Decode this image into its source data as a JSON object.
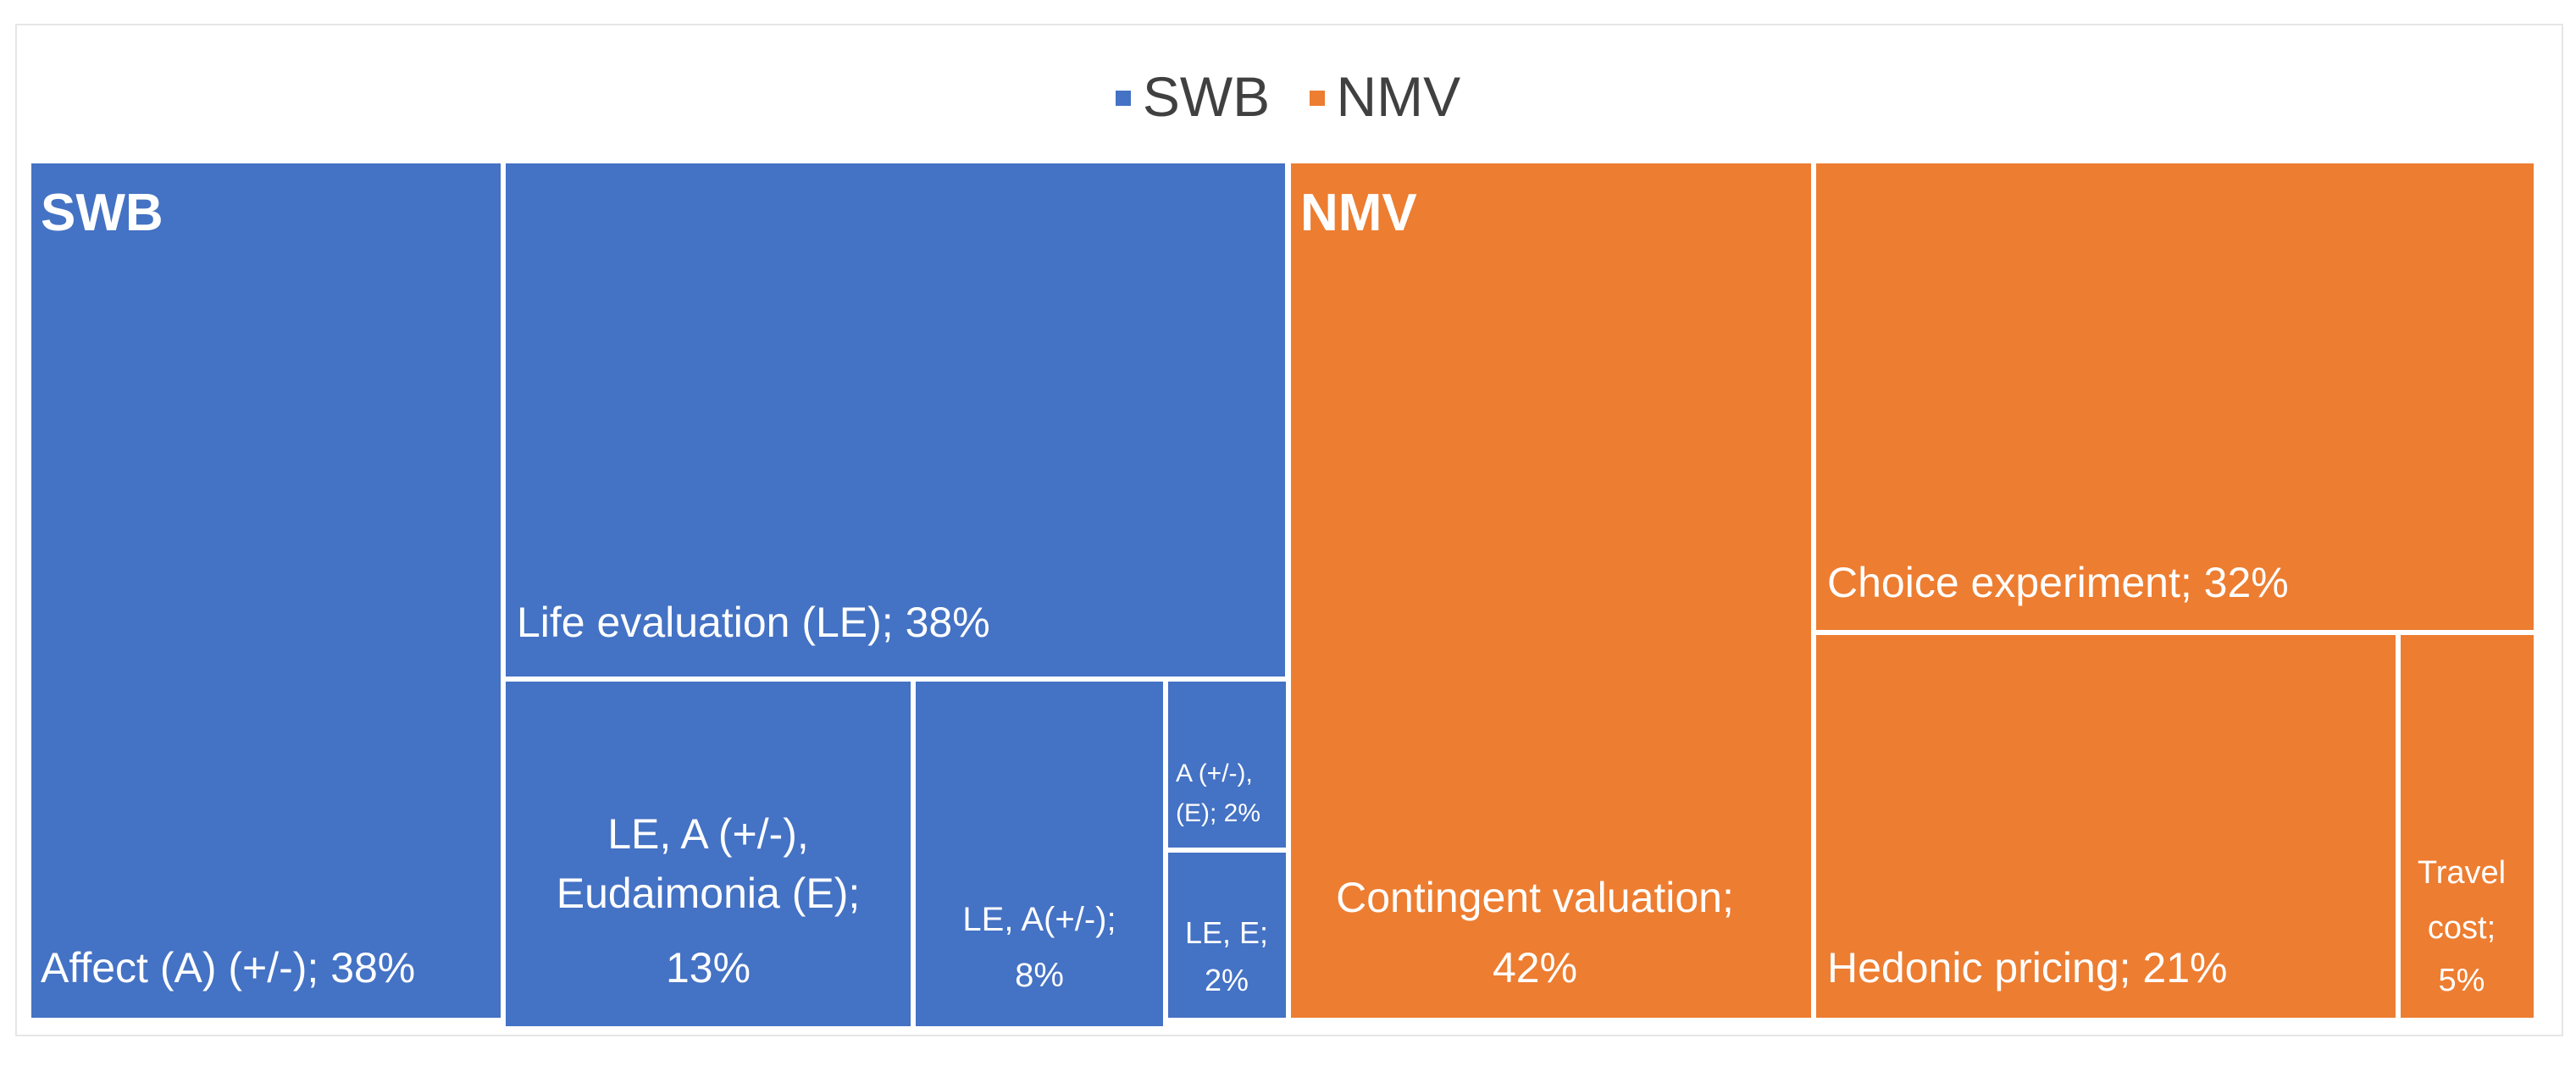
{
  "chart_data": {
    "type": "treemap",
    "legend": [
      {
        "name": "SWB",
        "color": "#4472c4"
      },
      {
        "name": "NMV",
        "color": "#ed7d31"
      }
    ],
    "groups": [
      {
        "name": "SWB",
        "color": "#4472c4",
        "items": [
          {
            "label": "Affect (A) (+/-); 38%",
            "value": 38
          },
          {
            "label": "Life evaluation (LE); 38%",
            "value": 38
          },
          {
            "label": "LE, A (+/-), Eudaimonia (E); 13%",
            "value": 13
          },
          {
            "label": "LE, A(+/-); 8%",
            "value": 8
          },
          {
            "label": "A (+/-), (E); 2%",
            "value": 2
          },
          {
            "label": "LE, E; 2%",
            "value": 2
          }
        ]
      },
      {
        "name": "NMV",
        "color": "#ed7d31",
        "items": [
          {
            "label": "Contingent valuation; 42%",
            "value": 42
          },
          {
            "label": "Choice experiment; 32%",
            "value": 32
          },
          {
            "label": "Hedonic pricing; 21%",
            "value": 21
          },
          {
            "label": "Travel cost; 5%",
            "value": 5
          }
        ]
      }
    ]
  }
}
